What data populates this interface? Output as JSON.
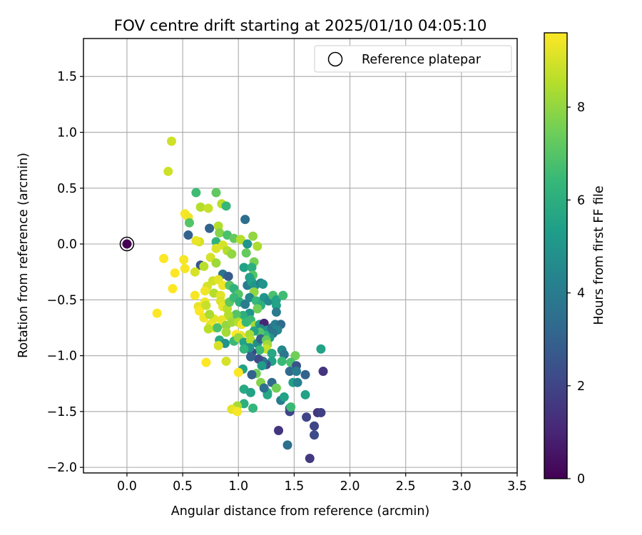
{
  "chart_data": {
    "type": "scatter",
    "title": "FOV centre drift starting at 2025/01/10 04:05:10",
    "xlabel": "Angular distance from reference (arcmin)",
    "ylabel": "Rotation from reference (arcmin)",
    "xlim": [
      -0.39,
      3.5
    ],
    "ylim": [
      -2.05,
      1.84
    ],
    "x_ticks": [
      0.0,
      0.5,
      1.0,
      1.5,
      2.0,
      2.5,
      3.0,
      3.5
    ],
    "x_tick_labels": [
      "0.0",
      "0.5",
      "1.0",
      "1.5",
      "2.0",
      "2.5",
      "3.0",
      "3.5"
    ],
    "y_ticks": [
      -2.0,
      -1.5,
      -1.0,
      -0.5,
      0.0,
      0.5,
      1.0,
      1.5
    ],
    "y_tick_labels": [
      "−2.0",
      "−1.5",
      "−1.0",
      "−0.5",
      "0.0",
      "0.5",
      "1.0",
      "1.5"
    ],
    "grid": true,
    "legend": {
      "position": "top-right",
      "entries": [
        "Reference platepar"
      ]
    },
    "reference_point": {
      "x": 0.0,
      "y": 0.0,
      "hours": 0.0
    },
    "colorbar": {
      "label": "Hours from first FF file",
      "min": 0,
      "max": 9.6,
      "ticks": [
        0,
        2,
        4,
        6,
        8
      ],
      "tick_labels": [
        "0",
        "2",
        "4",
        "6",
        "8"
      ],
      "colormap": [
        "#440154",
        "#482878",
        "#3e4989",
        "#31688e",
        "#26828e",
        "#1f9e89",
        "#35b779",
        "#6ece58",
        "#b5de2b",
        "#fde725"
      ]
    },
    "series": [
      {
        "points": [
          [
            0.4,
            0.92,
            8.9
          ],
          [
            0.37,
            0.65,
            8.9
          ],
          [
            0.62,
            0.46,
            6.6
          ],
          [
            0.8,
            0.46,
            7.2
          ],
          [
            0.85,
            0.36,
            8.6
          ],
          [
            0.89,
            0.34,
            6.4
          ],
          [
            0.52,
            0.27,
            9.5
          ],
          [
            0.55,
            0.24,
            9.4
          ],
          [
            0.56,
            0.19,
            7.0
          ],
          [
            0.66,
            0.33,
            8.5
          ],
          [
            0.73,
            0.32,
            8.8
          ],
          [
            1.06,
            0.22,
            3.5
          ],
          [
            0.55,
            0.08,
            3.0
          ],
          [
            0.74,
            0.14,
            3.0
          ],
          [
            0.82,
            0.16,
            8.5
          ],
          [
            0.83,
            0.1,
            7.8
          ],
          [
            0.9,
            0.08,
            6.8
          ],
          [
            0.96,
            0.05,
            7.3
          ],
          [
            1.02,
            0.04,
            8.5
          ],
          [
            1.13,
            0.07,
            8.0
          ],
          [
            1.17,
            -0.02,
            8.4
          ],
          [
            0.65,
            0.02,
            9.0
          ],
          [
            0.62,
            0.03,
            9.3
          ],
          [
            0.8,
            0.02,
            6.2
          ],
          [
            0.86,
            -0.01,
            9.0
          ],
          [
            1.08,
            0.0,
            5.0
          ],
          [
            0.8,
            -0.04,
            9.1
          ],
          [
            0.9,
            -0.06,
            8.5
          ],
          [
            0.94,
            -0.09,
            8.0
          ],
          [
            1.07,
            -0.08,
            7.3
          ],
          [
            0.33,
            -0.13,
            9.6
          ],
          [
            0.51,
            -0.14,
            9.5
          ],
          [
            0.52,
            -0.22,
            9.5
          ],
          [
            0.43,
            -0.26,
            9.6
          ],
          [
            0.75,
            -0.12,
            9.0
          ],
          [
            0.8,
            -0.17,
            8.2
          ],
          [
            1.14,
            -0.16,
            7.6
          ],
          [
            0.66,
            -0.19,
            2.5
          ],
          [
            0.69,
            -0.2,
            8.6
          ],
          [
            0.61,
            -0.25,
            9.0
          ],
          [
            0.86,
            -0.27,
            3.6
          ],
          [
            0.91,
            -0.29,
            2.8
          ],
          [
            1.05,
            -0.21,
            5.5
          ],
          [
            1.12,
            -0.21,
            6.0
          ],
          [
            1.13,
            -0.28,
            7.0
          ],
          [
            1.1,
            -0.3,
            5.5
          ],
          [
            0.77,
            -0.33,
            8.9
          ],
          [
            0.82,
            -0.32,
            9.2
          ],
          [
            0.86,
            -0.37,
            9.4
          ],
          [
            0.72,
            -0.38,
            9.0
          ],
          [
            0.7,
            -0.42,
            9.4
          ],
          [
            0.78,
            -0.44,
            8.5
          ],
          [
            0.84,
            -0.46,
            9.2
          ],
          [
            0.92,
            -0.37,
            7.0
          ],
          [
            0.96,
            -0.4,
            6.2
          ],
          [
            1.0,
            -0.45,
            7.0
          ],
          [
            1.08,
            -0.37,
            4.0
          ],
          [
            1.12,
            -0.34,
            5.5
          ],
          [
            1.15,
            -0.37,
            5.0
          ],
          [
            1.2,
            -0.35,
            4.2
          ],
          [
            1.22,
            -0.36,
            5.0
          ],
          [
            1.14,
            -0.43,
            8.0
          ],
          [
            0.41,
            -0.4,
            9.6
          ],
          [
            0.61,
            -0.46,
            9.5
          ],
          [
            0.64,
            -0.56,
            9.3
          ],
          [
            0.65,
            -0.6,
            9.6
          ],
          [
            0.7,
            -0.52,
            9.4
          ],
          [
            0.71,
            -0.55,
            8.8
          ],
          [
            0.69,
            -0.66,
            9.4
          ],
          [
            0.84,
            -0.51,
            9.1
          ],
          [
            0.86,
            -0.56,
            9.3
          ],
          [
            0.9,
            -0.58,
            8.6
          ],
          [
            0.92,
            -0.52,
            7.2
          ],
          [
            0.96,
            -0.48,
            6.5
          ],
          [
            1.01,
            -0.52,
            6.0
          ],
          [
            1.06,
            -0.54,
            4.0
          ],
          [
            1.1,
            -0.48,
            4.5
          ],
          [
            1.16,
            -0.51,
            6.4
          ],
          [
            1.23,
            -0.48,
            5.0
          ],
          [
            1.27,
            -0.51,
            4.6
          ],
          [
            1.31,
            -0.46,
            6.8
          ],
          [
            1.34,
            -0.5,
            5.5
          ],
          [
            1.4,
            -0.46,
            6.6
          ],
          [
            1.34,
            -0.55,
            5.5
          ],
          [
            1.34,
            -0.61,
            4.0
          ],
          [
            1.2,
            -0.55,
            6.0
          ],
          [
            1.17,
            -0.58,
            7.5
          ],
          [
            1.1,
            -0.62,
            5.0
          ],
          [
            1.04,
            -0.64,
            6.0
          ],
          [
            0.98,
            -0.63,
            7.0
          ],
          [
            0.91,
            -0.64,
            8.5
          ],
          [
            0.85,
            -0.68,
            9.3
          ],
          [
            0.78,
            -0.67,
            9.2
          ],
          [
            0.74,
            -0.63,
            8.4
          ],
          [
            0.27,
            -0.62,
            9.6
          ],
          [
            0.75,
            -0.72,
            9.3
          ],
          [
            0.78,
            -0.75,
            9.6
          ],
          [
            0.81,
            -0.75,
            6.8
          ],
          [
            0.89,
            -0.73,
            8.0
          ],
          [
            0.94,
            -0.7,
            8.2
          ],
          [
            1.0,
            -0.7,
            8.5
          ],
          [
            1.03,
            -0.72,
            9.4
          ],
          [
            1.07,
            -0.7,
            6.4
          ],
          [
            1.11,
            -0.68,
            6.5
          ],
          [
            1.15,
            -0.73,
            8.3
          ],
          [
            1.19,
            -0.72,
            5.5
          ],
          [
            1.23,
            -0.71,
            1.0
          ],
          [
            1.2,
            -0.76,
            4.6
          ],
          [
            1.26,
            -0.77,
            5.0
          ],
          [
            1.3,
            -0.75,
            3.5
          ],
          [
            1.33,
            -0.72,
            4.2
          ],
          [
            1.38,
            -0.72,
            3.4
          ],
          [
            1.35,
            -0.77,
            4.4
          ],
          [
            1.31,
            -0.8,
            3.8
          ],
          [
            1.28,
            -0.84,
            5.0
          ],
          [
            1.24,
            -0.82,
            6.4
          ],
          [
            1.19,
            -0.79,
            7.0
          ],
          [
            1.14,
            -0.78,
            5.5
          ],
          [
            1.1,
            -0.81,
            8.3
          ],
          [
            1.02,
            -0.82,
            9.3
          ],
          [
            0.98,
            -0.81,
            9.6
          ],
          [
            0.89,
            -0.79,
            8.3
          ],
          [
            0.73,
            -0.76,
            8.6
          ],
          [
            0.83,
            -0.86,
            5.8
          ],
          [
            0.88,
            -0.89,
            5.0
          ],
          [
            0.96,
            -0.87,
            6.5
          ],
          [
            1.0,
            -0.84,
            8.0
          ],
          [
            1.05,
            -0.88,
            5.5
          ],
          [
            1.11,
            -0.86,
            8.5
          ],
          [
            1.17,
            -0.89,
            4.8
          ],
          [
            1.2,
            -0.85,
            3.0
          ],
          [
            1.25,
            -0.86,
            7.3
          ],
          [
            1.26,
            -0.9,
            8.2
          ],
          [
            1.25,
            -0.94,
            8.8
          ],
          [
            1.19,
            -0.95,
            6.5
          ],
          [
            1.12,
            -0.97,
            2.0
          ],
          [
            1.1,
            -0.93,
            5.0
          ],
          [
            1.05,
            -0.94,
            6.3
          ],
          [
            0.82,
            -0.91,
            9.0
          ],
          [
            1.3,
            -0.98,
            5.7
          ],
          [
            1.39,
            -0.95,
            4.5
          ],
          [
            1.41,
            -0.99,
            3.8
          ],
          [
            1.39,
            -1.05,
            6.5
          ],
          [
            1.3,
            -1.05,
            5.5
          ],
          [
            1.25,
            -1.08,
            2.5
          ],
          [
            1.22,
            -1.05,
            3.5
          ],
          [
            1.18,
            -1.03,
            2.2
          ],
          [
            1.11,
            -1.01,
            3.0
          ],
          [
            1.21,
            -1.09,
            5.3
          ],
          [
            1.16,
            -1.16,
            7.5
          ],
          [
            1.12,
            -1.17,
            3.0
          ],
          [
            1.04,
            -1.12,
            5.5
          ],
          [
            1.0,
            -1.15,
            9.6
          ],
          [
            0.89,
            -1.05,
            9.0
          ],
          [
            0.71,
            -1.06,
            9.6
          ],
          [
            1.51,
            -1.0,
            7.5
          ],
          [
            1.47,
            -1.06,
            6.8
          ],
          [
            1.52,
            -1.09,
            2.5
          ],
          [
            1.46,
            -1.14,
            3.3
          ],
          [
            1.52,
            -1.14,
            4.0
          ],
          [
            1.6,
            -1.17,
            3.0
          ],
          [
            1.74,
            -0.94,
            5.5
          ],
          [
            1.76,
            -1.14,
            1.5
          ],
          [
            1.49,
            -1.24,
            5.4
          ],
          [
            1.53,
            -1.24,
            4.2
          ],
          [
            1.3,
            -1.24,
            3.3
          ],
          [
            1.26,
            -1.33,
            6.3
          ],
          [
            1.26,
            -1.35,
            5.7
          ],
          [
            1.2,
            -1.24,
            7.8
          ],
          [
            1.23,
            -1.29,
            3.5
          ],
          [
            1.34,
            -1.29,
            7.5
          ],
          [
            1.38,
            -1.4,
            4.0
          ],
          [
            1.41,
            -1.37,
            5.5
          ],
          [
            1.46,
            -1.47,
            2.8
          ],
          [
            1.46,
            -1.5,
            2.0
          ],
          [
            1.47,
            -1.46,
            6.5
          ],
          [
            1.6,
            -1.35,
            5.5
          ],
          [
            1.05,
            -1.3,
            5.8
          ],
          [
            1.11,
            -1.33,
            5.5
          ],
          [
            1.05,
            -1.43,
            6.0
          ],
          [
            1.13,
            -1.47,
            6.3
          ],
          [
            0.99,
            -1.45,
            8.3
          ],
          [
            0.94,
            -1.48,
            9.2
          ],
          [
            0.99,
            -1.5,
            9.5
          ],
          [
            1.36,
            -1.67,
            1.5
          ],
          [
            1.44,
            -1.8,
            3.5
          ],
          [
            1.61,
            -1.55,
            2.0
          ],
          [
            1.71,
            -1.51,
            1.5
          ],
          [
            1.74,
            -1.51,
            1.8
          ],
          [
            1.68,
            -1.63,
            2.0
          ],
          [
            1.68,
            -1.71,
            2.2
          ],
          [
            1.64,
            -1.92,
            1.6
          ]
        ]
      }
    ]
  }
}
